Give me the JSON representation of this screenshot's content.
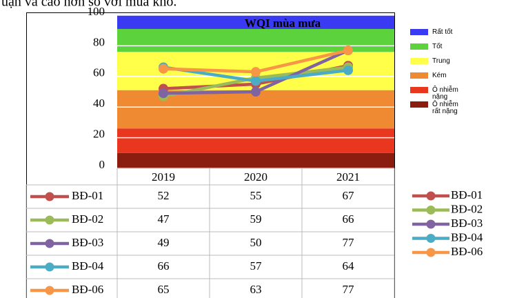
{
  "caption": "uận và cao hơn so với mùa khô.",
  "chart_data": {
    "type": "line",
    "title": "WQI mùa mưa",
    "categories": [
      "2019",
      "2020",
      "2021"
    ],
    "series": [
      {
        "name": "BĐ-01",
        "color": "#c0504d",
        "values": [
          52,
          55,
          67
        ]
      },
      {
        "name": "BĐ-02",
        "color": "#9bbb59",
        "values": [
          47,
          59,
          66
        ]
      },
      {
        "name": "BĐ-03",
        "color": "#8064a2",
        "values": [
          49,
          50,
          77
        ]
      },
      {
        "name": "BĐ-04",
        "color": "#4bacc6",
        "values": [
          66,
          57,
          64
        ]
      },
      {
        "name": "BĐ-06",
        "color": "#f79646",
        "values": [
          65,
          63,
          77
        ]
      }
    ],
    "bands": [
      {
        "name": "Rất tốt",
        "color": "#3a3af2",
        "from": 91,
        "to": 100
      },
      {
        "name": "Tốt",
        "color": "#5cd23c",
        "from": 76,
        "to": 91
      },
      {
        "name": "Trung",
        "color": "#ffff4a",
        "from": 51,
        "to": 76
      },
      {
        "name": "Kém",
        "color": "#f08a32",
        "from": 26,
        "to": 51
      },
      {
        "name": "Ô nhiễm nặng",
        "color": "#e8361f",
        "from": 10,
        "to": 26
      },
      {
        "name": "Ô nhiễm rất nặng",
        "color": "#8b1c10",
        "from": 0,
        "to": 10
      }
    ],
    "ylim": [
      0,
      100
    ],
    "yticks": [
      0,
      20,
      40,
      60,
      80,
      100
    ],
    "grid": true,
    "grid_color": "#ffffff"
  }
}
